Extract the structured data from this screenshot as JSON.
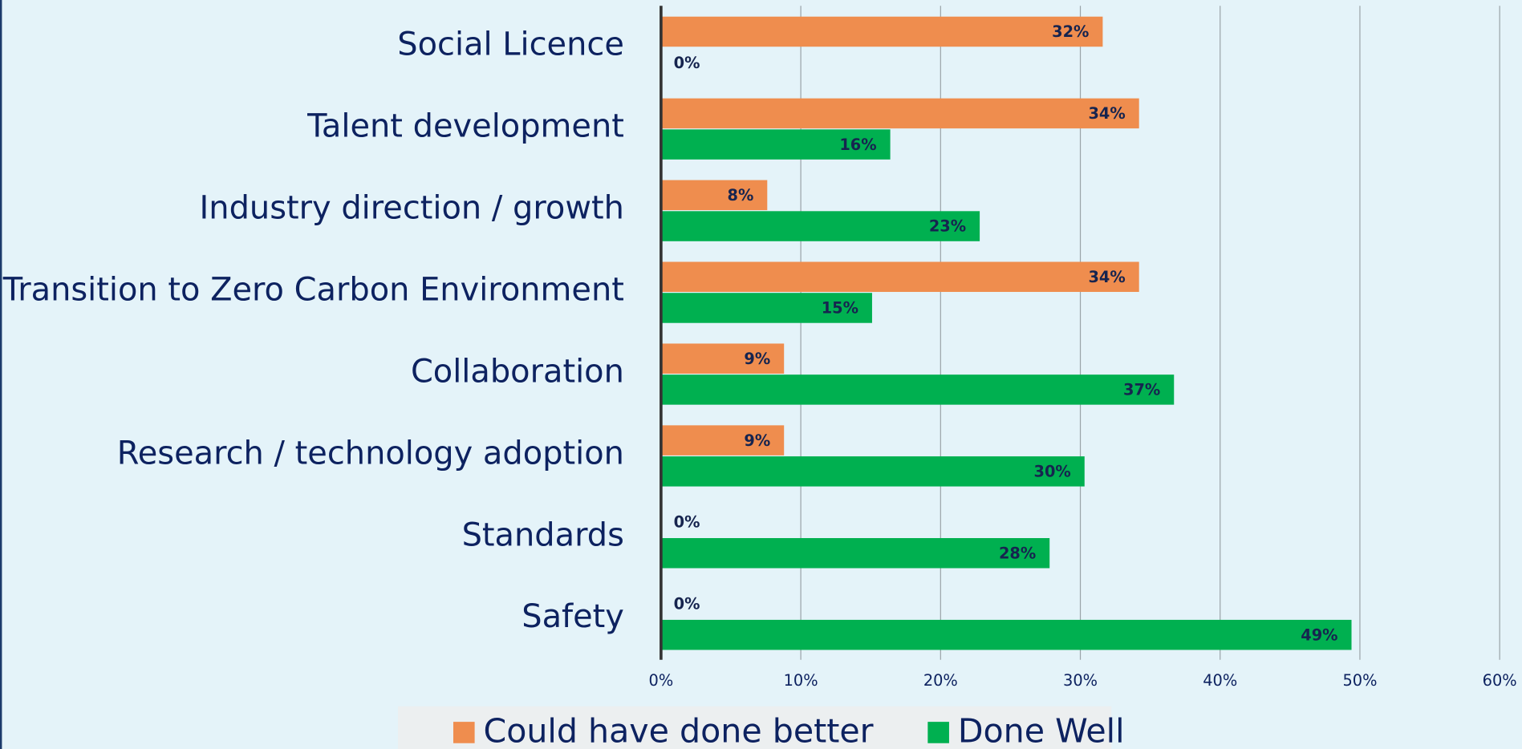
{
  "chart_data": {
    "type": "hbar",
    "categories": [
      "Social Licence",
      "Talent development",
      "Industry direction / growth",
      "Transition to Zero Carbon Environment",
      "Collaboration",
      "Research / technology adoption",
      "Standards",
      "Safety"
    ],
    "series": [
      {
        "name": "Could have done better",
        "color": "#ef8d4e",
        "values": [
          31.6,
          34.2,
          7.6,
          34.2,
          8.8,
          8.8,
          0,
          0
        ],
        "value_labels": [
          "32%",
          "34%",
          "8%",
          "34%",
          "9%",
          "9%",
          "0%",
          "0%"
        ]
      },
      {
        "name": "Done Well",
        "color": "#00b050",
        "values": [
          0,
          16.4,
          22.8,
          15.1,
          36.7,
          30.3,
          27.8,
          49.4
        ],
        "value_labels": [
          "0%",
          "16%",
          "23%",
          "15%",
          "37%",
          "30%",
          "28%",
          "49%"
        ]
      }
    ],
    "xlim": [
      0,
      60
    ],
    "xticks": [
      {
        "value": 0,
        "label": "0%"
      },
      {
        "value": 10,
        "label": "10%"
      },
      {
        "value": 20,
        "label": "20%"
      },
      {
        "value": 30,
        "label": "30%"
      },
      {
        "value": 40,
        "label": "40%"
      },
      {
        "value": 50,
        "label": "50%"
      },
      {
        "value": 60,
        "label": "60%"
      }
    ],
    "grid": true,
    "legend": "bottom"
  }
}
